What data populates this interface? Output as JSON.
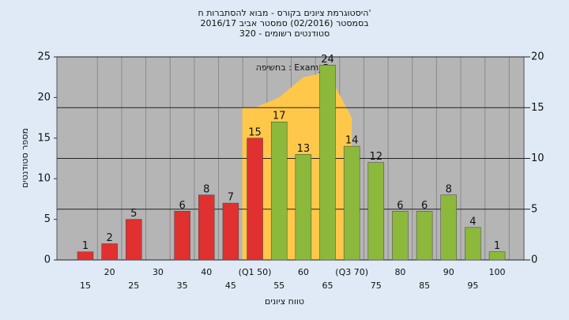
{
  "chart_data": {
    "type": "bar",
    "title": [
      "היסטוגרמת ציונים בקורס - מבוא להסתברות ח'",
      "בסמסטר  (02/2016)  סמסטר אביב  2016/17",
      "סטודנטים רשומים - 320"
    ],
    "subtitle": "בחשיפה : Exam_B",
    "x_label": "טווח ציונים",
    "y_label": "מספר סטודנטים",
    "categories": [
      "15",
      "20",
      "25",
      "30",
      "35",
      "40",
      "45",
      "(Q1 50)",
      "55",
      "60",
      "65",
      "(Q3 70)",
      "75",
      "80",
      "85",
      "90",
      "95",
      "100"
    ],
    "values": [
      1,
      2,
      5,
      null,
      6,
      8,
      7,
      15,
      17,
      13,
      24,
      14,
      12,
      6,
      6,
      8,
      4,
      1
    ],
    "colors": [
      "#e03030",
      "#e03030",
      "#e03030",
      "#e03030",
      "#e03030",
      "#e03030",
      "#e03030",
      "#e03030",
      "#8cb83c",
      "#8cb83c",
      "#8cb83c",
      "#8cb83c",
      "#8cb83c",
      "#8cb83c",
      "#8cb83c",
      "#8cb83c",
      "#8cb83c",
      "#8cb83c"
    ],
    "area": {
      "axis": "y2",
      "color": "#ffc84a",
      "values": [
        null,
        null,
        null,
        null,
        null,
        null,
        null,
        15,
        16,
        18,
        18.5,
        14,
        null,
        null,
        null,
        null,
        null,
        null
      ]
    },
    "ylim": [
      0,
      25
    ],
    "yticks": [
      0,
      5,
      10,
      15,
      20,
      25
    ],
    "y2lim": [
      0,
      20
    ],
    "y2ticks": [
      0,
      5,
      10,
      15,
      20
    ],
    "grid": true
  }
}
